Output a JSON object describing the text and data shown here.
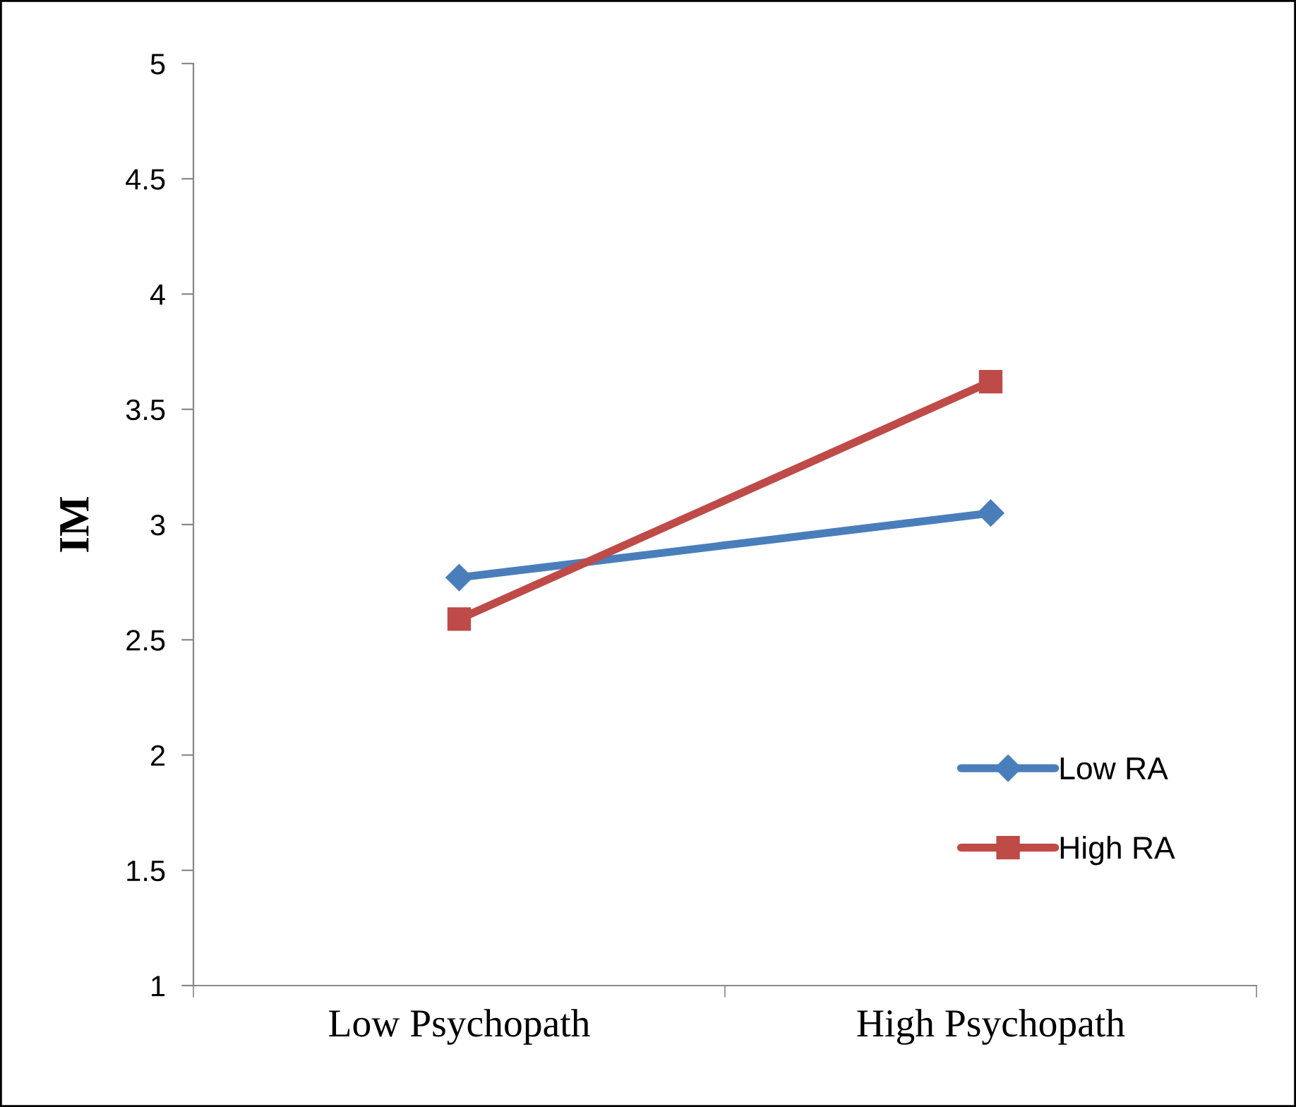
{
  "chart_data": {
    "type": "line",
    "ylabel": "IM",
    "categories": [
      "Low Psychopath",
      "High Psychopath"
    ],
    "series": [
      {
        "name": "Low RA",
        "color": "#4a7ebb",
        "marker": "diamond",
        "values": [
          2.77,
          3.05
        ]
      },
      {
        "name": "High RA",
        "color": "#be4b48",
        "marker": "square",
        "values": [
          2.59,
          3.62
        ]
      }
    ],
    "ylim": [
      1,
      5
    ],
    "yticks": [
      1,
      1.5,
      2,
      2.5,
      3,
      3.5,
      4,
      4.5,
      5
    ],
    "grid": false,
    "legend": "bottom right",
    "line_style": "solid"
  }
}
